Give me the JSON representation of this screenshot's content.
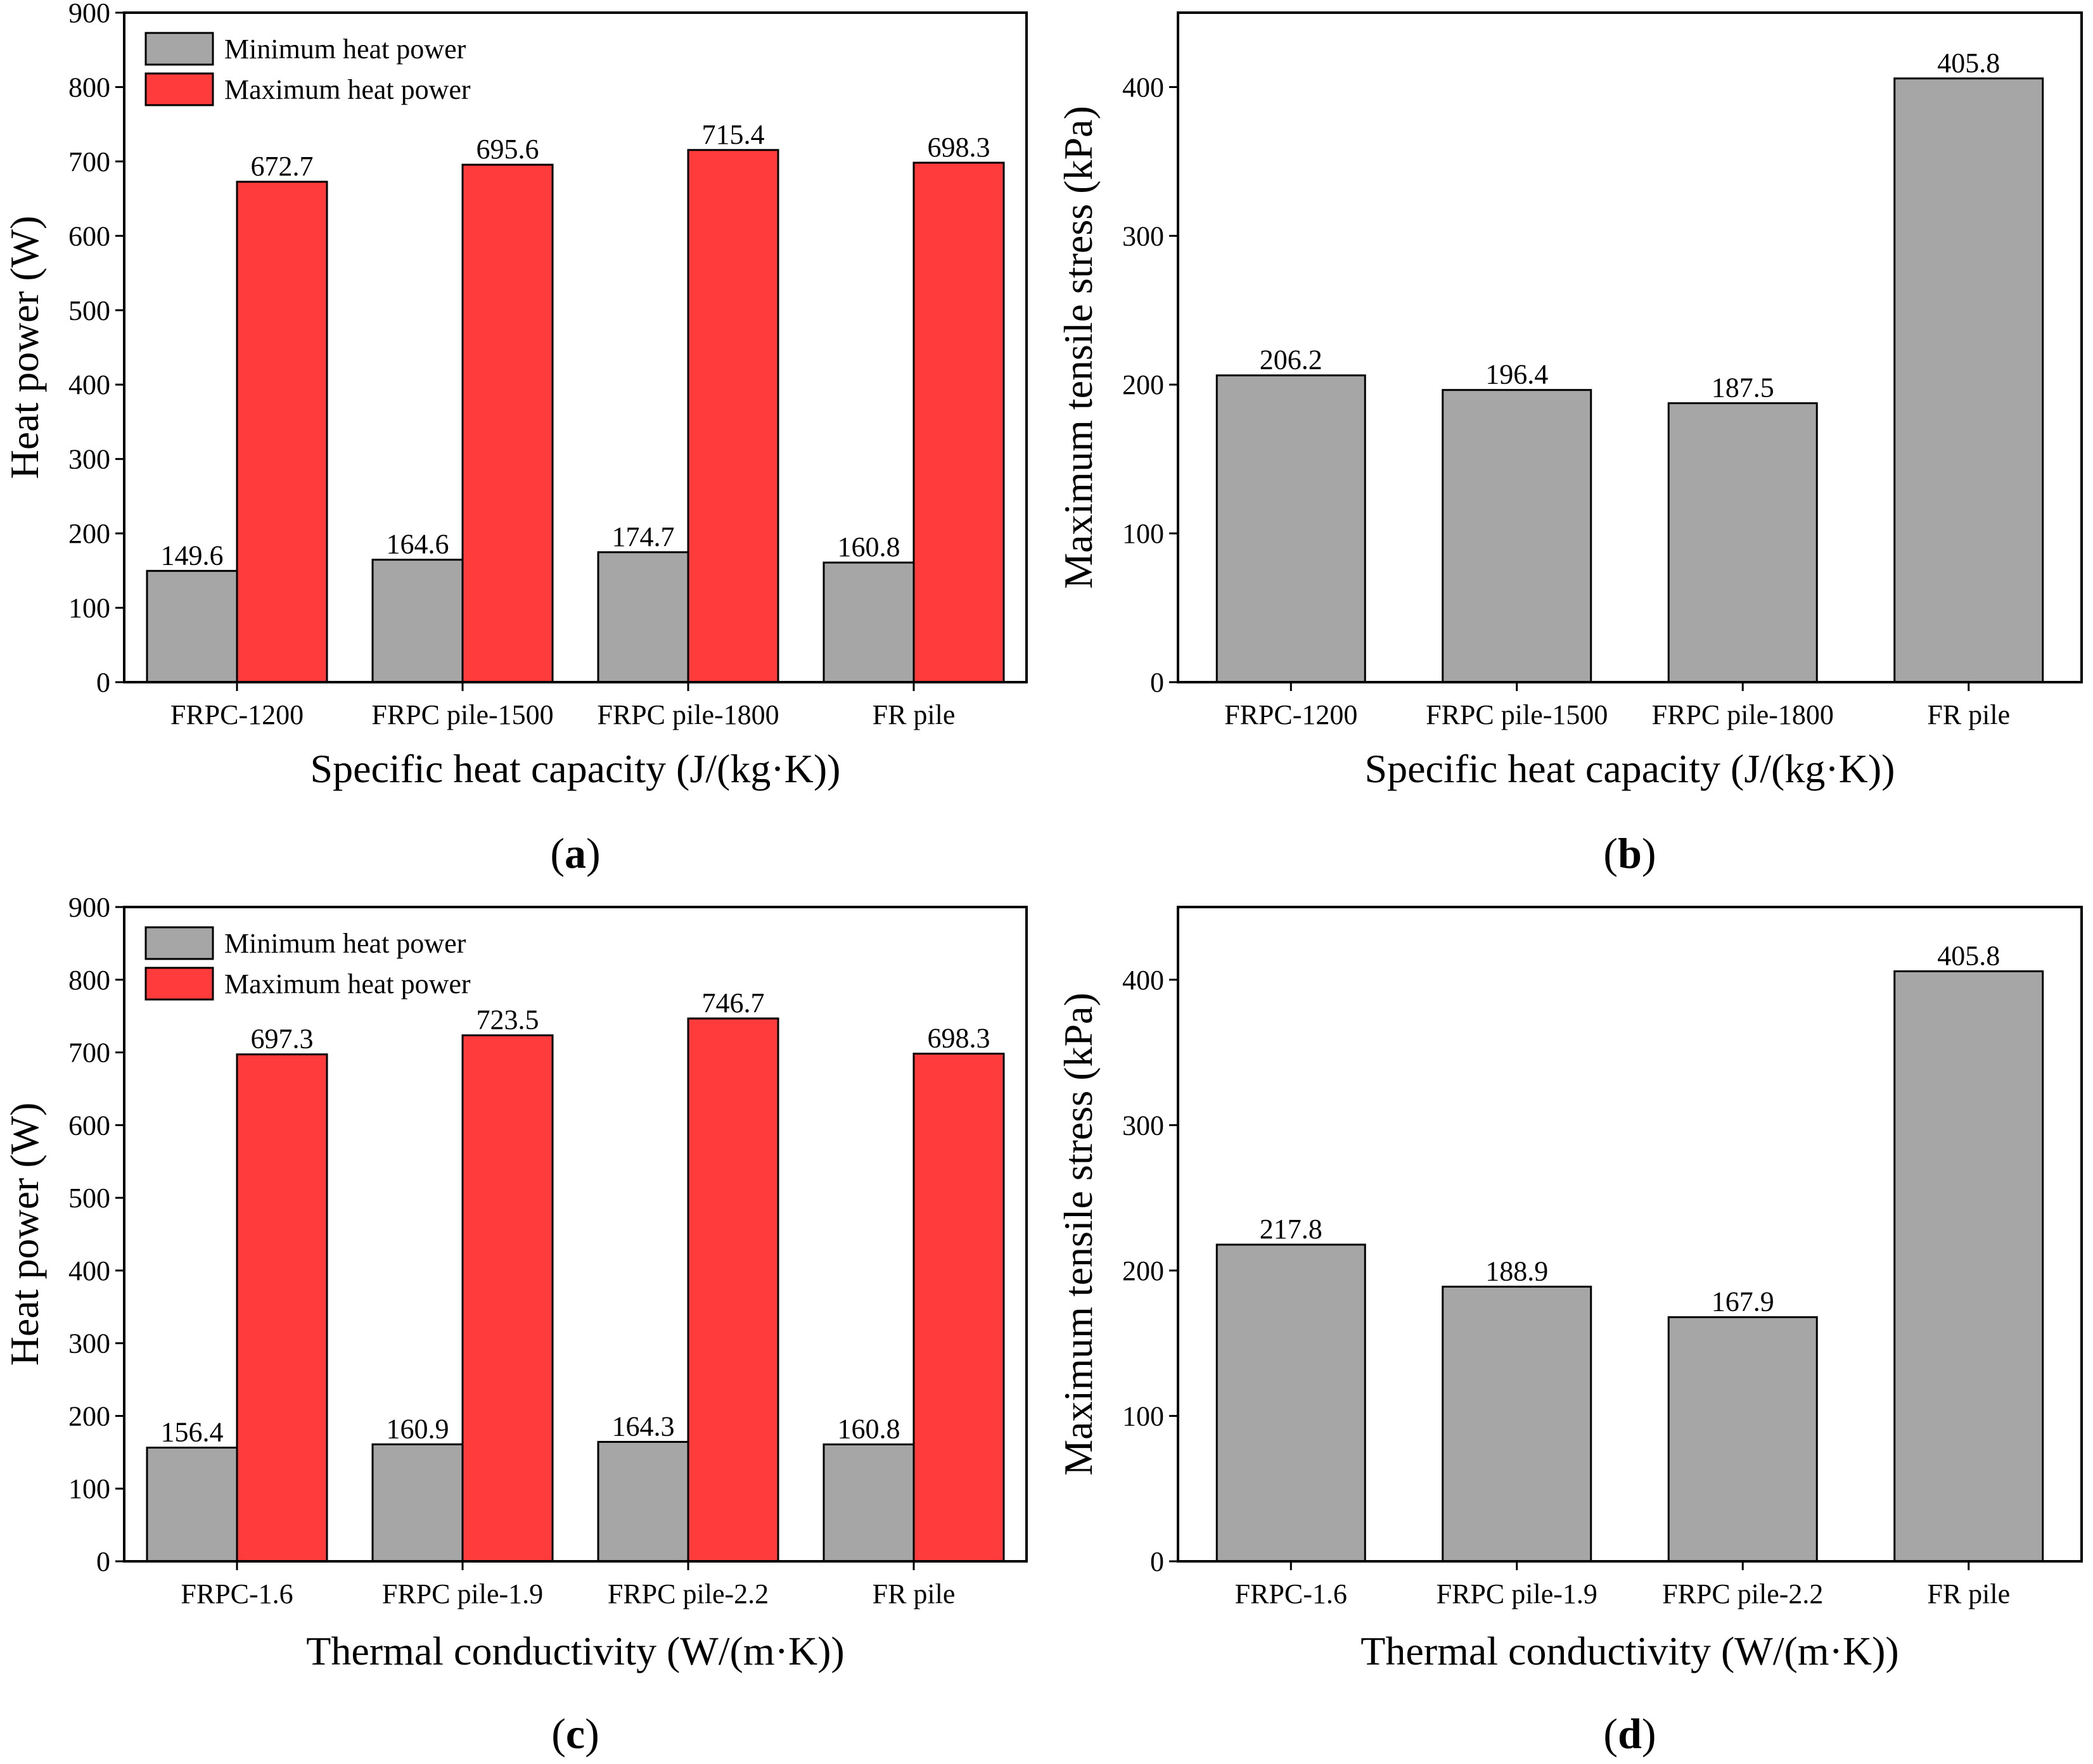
{
  "colors": {
    "min_bar": "#a6a6a6",
    "max_bar": "#ff3b3b",
    "stress_bar": "#a6a6a6",
    "axis": "#000000",
    "background": "#ffffff"
  },
  "chart_data": [
    {
      "id": "a",
      "type": "bar",
      "caption_letter": "a",
      "categories": [
        "FRPC-1200",
        "FRPC pile-1500",
        "FRPC pile-1800",
        "FR pile"
      ],
      "series": [
        {
          "name": "Minimum heat power",
          "values": [
            149.6,
            164.6,
            174.7,
            160.8
          ],
          "labels": [
            "149.6",
            "164.6",
            "174.7",
            "160.8"
          ]
        },
        {
          "name": "Maximum heat power",
          "values": [
            672.7,
            695.6,
            715.4,
            698.3
          ],
          "labels": [
            "672.7",
            "695.6",
            "715.4",
            "698.3"
          ]
        }
      ],
      "xlabel": "Specific heat capacity (J/(kg·K))",
      "ylabel": "Heat power (W)",
      "ylim": [
        0,
        900
      ],
      "yticks": [
        "0",
        "100",
        "200",
        "300",
        "400",
        "500",
        "600",
        "700",
        "800",
        "900"
      ],
      "legend": "top-left",
      "grid": false
    },
    {
      "id": "b",
      "type": "bar",
      "caption_letter": "b",
      "categories": [
        "FRPC-1200",
        "FRPC pile-1500",
        "FRPC pile-1800",
        "FR pile"
      ],
      "series": [
        {
          "name": "Maximum tensile stress",
          "values": [
            206.2,
            196.4,
            187.5,
            405.8
          ],
          "labels": [
            "206.2",
            "196.4",
            "187.5",
            "405.8"
          ]
        }
      ],
      "xlabel": "Specific heat capacity (J/(kg·K))",
      "ylabel": "Maximum tensile stress (kPa)",
      "ylim": [
        0,
        450
      ],
      "yticks": [
        "0",
        "100",
        "200",
        "300",
        "400"
      ],
      "grid": false
    },
    {
      "id": "c",
      "type": "bar",
      "caption_letter": "c",
      "categories": [
        "FRPC-1.6",
        "FRPC pile-1.9",
        "FRPC pile-2.2",
        "FR pile"
      ],
      "series": [
        {
          "name": "Minimum heat power",
          "values": [
            156.4,
            160.9,
            164.3,
            160.8
          ],
          "labels": [
            "156.4",
            "160.9",
            "164.3",
            "160.8"
          ]
        },
        {
          "name": "Maximum heat power",
          "values": [
            697.3,
            723.5,
            746.7,
            698.3
          ],
          "labels": [
            "697.3",
            "723.5",
            "746.7",
            "698.3"
          ]
        }
      ],
      "xlabel": "Thermal conductivity (W/(m·K))",
      "ylabel": "Heat power (W)",
      "ylim": [
        0,
        900
      ],
      "yticks": [
        "0",
        "100",
        "200",
        "300",
        "400",
        "500",
        "600",
        "700",
        "800",
        "900"
      ],
      "legend": "top-left",
      "grid": false
    },
    {
      "id": "d",
      "type": "bar",
      "caption_letter": "d",
      "categories": [
        "FRPC-1.6",
        "FRPC pile-1.9",
        "FRPC pile-2.2",
        "FR pile"
      ],
      "series": [
        {
          "name": "Maximum tensile stress",
          "values": [
            217.8,
            188.9,
            167.9,
            405.8
          ],
          "labels": [
            "217.8",
            "188.9",
            "167.9",
            "405.8"
          ]
        }
      ],
      "xlabel": "Thermal conductivity (W/(m·K))",
      "ylabel": "Maximum tensile stress (kPa)",
      "ylim": [
        0,
        450
      ],
      "yticks": [
        "0",
        "100",
        "200",
        "300",
        "400"
      ],
      "grid": false
    }
  ]
}
